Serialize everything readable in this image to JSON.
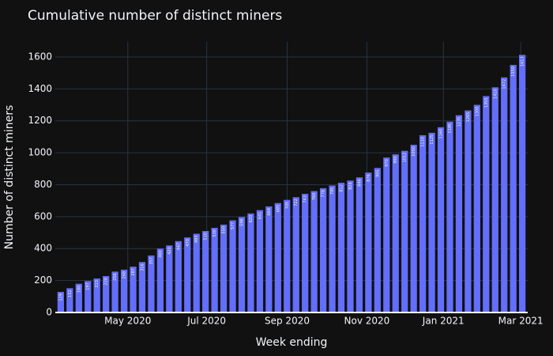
{
  "chart_data": {
    "type": "bar",
    "title": "Cumulative number of distinct miners",
    "x_label": "Week ending",
    "y_label": "Number of distinct miners",
    "categories": [
      null,
      null,
      null,
      null,
      null,
      null,
      null,
      null,
      null,
      null,
      null,
      null,
      null,
      null,
      null,
      null,
      null,
      null,
      null,
      null,
      null,
      null,
      null,
      null,
      null,
      null,
      null,
      null,
      null,
      null,
      null,
      null,
      null,
      null,
      null,
      null,
      null,
      null,
      null,
      null,
      null,
      null,
      null,
      null,
      null,
      null,
      null,
      null,
      null,
      null,
      null,
      null
    ],
    "values": [
      129,
      152,
      180,
      197,
      213,
      228,
      256,
      268,
      287,
      316,
      357,
      400,
      420,
      447,
      470,
      493,
      510,
      530,
      550,
      577,
      598,
      620,
      641,
      664,
      685,
      705,
      722,
      743,
      760,
      778,
      795,
      812,
      826,
      846,
      876,
      905,
      970,
      990,
      1012,
      1050,
      1110,
      1125,
      1160,
      1195,
      1235,
      1265,
      1300,
      1355,
      1410,
      1472,
      1550,
      1613
    ],
    "color": "#636efa",
    "xlim": [
      -0.6,
      51.6
    ],
    "xticks": [
      {
        "value": 7.41,
        "label": "May 2020"
      },
      {
        "value": 16.13,
        "label": "Jul 2020"
      },
      {
        "value": 25.02,
        "label": "Sep 2020"
      },
      {
        "value": 33.83,
        "label": "Nov 2020"
      },
      {
        "value": 42.28,
        "label": "Jan 2021"
      },
      {
        "value": 50.83,
        "label": "Mar 2021"
      }
    ],
    "ylim": [
      0,
      1694
    ],
    "yticks": [
      0,
      200,
      400,
      600,
      800,
      1000,
      1200,
      1400,
      1600
    ],
    "grid": true
  }
}
